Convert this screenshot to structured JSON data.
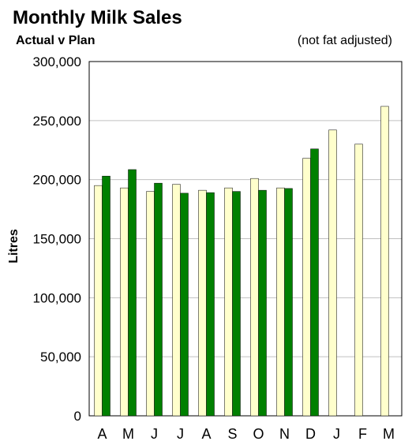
{
  "chart_data": {
    "type": "bar",
    "title": "Monthly Milk Sales",
    "subtitle": "Actual v Plan",
    "note": "(not fat adjusted)",
    "ylabel": "Litres",
    "xlabel": "",
    "categories": [
      "A",
      "M",
      "J",
      "J",
      "A",
      "S",
      "O",
      "N",
      "D",
      "J",
      "F",
      "M"
    ],
    "ylim": [
      0,
      300000
    ],
    "yticks": [
      "0",
      "50,000",
      "100,000",
      "150,000",
      "200,000",
      "250,000",
      "300,000"
    ],
    "ytick_values": [
      0,
      50000,
      100000,
      150000,
      200000,
      250000,
      300000
    ],
    "grid": true,
    "series": [
      {
        "color": "#FFFFCC",
        "values": [
          195000,
          193000,
          190000,
          196000,
          191000,
          193000,
          201000,
          193000,
          218000,
          242000,
          230000,
          262000
        ]
      },
      {
        "color": "#008000",
        "values": [
          203000,
          208500,
          197000,
          188500,
          189000,
          190000,
          191000,
          192500,
          226000,
          null,
          null,
          null
        ]
      }
    ]
  }
}
